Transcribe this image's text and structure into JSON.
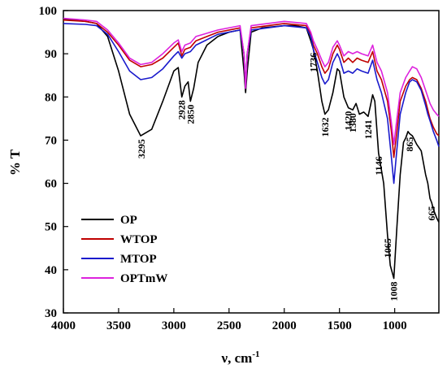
{
  "chart_data": {
    "type": "line",
    "title": "",
    "xlabel": "ν, cm",
    "xlabel_sup": "-1",
    "ylabel": "% T",
    "xlim": [
      4000,
      600
    ],
    "ylim": [
      30,
      100
    ],
    "x_reversed": true,
    "x_ticks": [
      4000,
      3500,
      3000,
      2500,
      2000,
      1500,
      1000
    ],
    "y_ticks": [
      30,
      40,
      50,
      60,
      70,
      80,
      90,
      100
    ],
    "grid": false,
    "legend_position": "lower-left",
    "series": [
      {
        "name": "OP",
        "color": "#000000",
        "points": [
          [
            4000,
            98
          ],
          [
            3900,
            97.8
          ],
          [
            3800,
            97.5
          ],
          [
            3700,
            97
          ],
          [
            3600,
            94
          ],
          [
            3500,
            86
          ],
          [
            3400,
            76
          ],
          [
            3300,
            71
          ],
          [
            3200,
            72.5
          ],
          [
            3100,
            79
          ],
          [
            3000,
            86
          ],
          [
            2960,
            86.8
          ],
          [
            2928,
            80
          ],
          [
            2900,
            82.5
          ],
          [
            2870,
            83.5
          ],
          [
            2850,
            79
          ],
          [
            2820,
            82
          ],
          [
            2780,
            88
          ],
          [
            2700,
            92
          ],
          [
            2600,
            94
          ],
          [
            2500,
            95
          ],
          [
            2400,
            95.5
          ],
          [
            2365,
            86
          ],
          [
            2350,
            81
          ],
          [
            2335,
            86
          ],
          [
            2300,
            95
          ],
          [
            2200,
            96
          ],
          [
            2000,
            96.5
          ],
          [
            1900,
            96.5
          ],
          [
            1800,
            96
          ],
          [
            1760,
            93
          ],
          [
            1736,
            91
          ],
          [
            1700,
            86
          ],
          [
            1660,
            79
          ],
          [
            1632,
            76
          ],
          [
            1600,
            77
          ],
          [
            1560,
            81
          ],
          [
            1520,
            86.5
          ],
          [
            1500,
            86
          ],
          [
            1460,
            80
          ],
          [
            1420,
            77.5
          ],
          [
            1380,
            77
          ],
          [
            1350,
            78.5
          ],
          [
            1320,
            76
          ],
          [
            1280,
            76.5
          ],
          [
            1241,
            75.5
          ],
          [
            1220,
            78
          ],
          [
            1200,
            80.5
          ],
          [
            1180,
            79
          ],
          [
            1146,
            67
          ],
          [
            1100,
            60
          ],
          [
            1065,
            48
          ],
          [
            1040,
            41
          ],
          [
            1008,
            38
          ],
          [
            980,
            50
          ],
          [
            950,
            62
          ],
          [
            920,
            69.5
          ],
          [
            900,
            70.5
          ],
          [
            880,
            72
          ],
          [
            865,
            71.5
          ],
          [
            840,
            71
          ],
          [
            800,
            69
          ],
          [
            760,
            67.5
          ],
          [
            720,
            62
          ],
          [
            700,
            60
          ],
          [
            680,
            56.5
          ],
          [
            665,
            55.5
          ],
          [
            650,
            54
          ],
          [
            620,
            52
          ],
          [
            600,
            51
          ]
        ]
      },
      {
        "name": "WTOP",
        "color": "#c00000",
        "points": [
          [
            4000,
            97.8
          ],
          [
            3800,
            97.5
          ],
          [
            3700,
            97
          ],
          [
            3600,
            95
          ],
          [
            3500,
            92
          ],
          [
            3400,
            88.5
          ],
          [
            3300,
            87
          ],
          [
            3200,
            87.5
          ],
          [
            3100,
            89
          ],
          [
            3000,
            91.5
          ],
          [
            2960,
            92.5
          ],
          [
            2928,
            89.5
          ],
          [
            2900,
            91
          ],
          [
            2850,
            91.5
          ],
          [
            2800,
            93
          ],
          [
            2600,
            95
          ],
          [
            2400,
            96
          ],
          [
            2365,
            90
          ],
          [
            2350,
            82
          ],
          [
            2335,
            90
          ],
          [
            2300,
            96
          ],
          [
            2000,
            97
          ],
          [
            1800,
            96.5
          ],
          [
            1760,
            94.5
          ],
          [
            1736,
            92
          ],
          [
            1700,
            90
          ],
          [
            1660,
            87
          ],
          [
            1632,
            85.5
          ],
          [
            1600,
            86.5
          ],
          [
            1560,
            90
          ],
          [
            1520,
            92
          ],
          [
            1500,
            91
          ],
          [
            1460,
            88
          ],
          [
            1420,
            89
          ],
          [
            1380,
            88
          ],
          [
            1340,
            89
          ],
          [
            1300,
            88.5
          ],
          [
            1241,
            88
          ],
          [
            1200,
            90.5
          ],
          [
            1160,
            86
          ],
          [
            1120,
            84
          ],
          [
            1065,
            79
          ],
          [
            1030,
            72
          ],
          [
            1008,
            66
          ],
          [
            980,
            72
          ],
          [
            950,
            79
          ],
          [
            900,
            82.5
          ],
          [
            865,
            84
          ],
          [
            840,
            84.5
          ],
          [
            800,
            84
          ],
          [
            760,
            82
          ],
          [
            720,
            79
          ],
          [
            700,
            77
          ],
          [
            680,
            75
          ],
          [
            650,
            73
          ],
          [
            620,
            71.5
          ],
          [
            600,
            71
          ]
        ]
      },
      {
        "name": "MTOP",
        "color": "#1a1acc",
        "points": [
          [
            4000,
            97
          ],
          [
            3800,
            96.8
          ],
          [
            3700,
            96.5
          ],
          [
            3600,
            94.5
          ],
          [
            3500,
            90.5
          ],
          [
            3400,
            86
          ],
          [
            3300,
            84
          ],
          [
            3200,
            84.5
          ],
          [
            3100,
            86.5
          ],
          [
            3000,
            89.5
          ],
          [
            2960,
            90.5
          ],
          [
            2928,
            89
          ],
          [
            2900,
            90
          ],
          [
            2850,
            90.5
          ],
          [
            2800,
            92
          ],
          [
            2600,
            94.5
          ],
          [
            2400,
            95.5
          ],
          [
            2365,
            90
          ],
          [
            2350,
            82
          ],
          [
            2335,
            90
          ],
          [
            2300,
            95.5
          ],
          [
            2000,
            96.5
          ],
          [
            1800,
            96
          ],
          [
            1760,
            94
          ],
          [
            1736,
            91
          ],
          [
            1700,
            88
          ],
          [
            1660,
            84.5
          ],
          [
            1632,
            83
          ],
          [
            1600,
            84
          ],
          [
            1560,
            88
          ],
          [
            1520,
            90
          ],
          [
            1500,
            89
          ],
          [
            1460,
            85.5
          ],
          [
            1420,
            86
          ],
          [
            1380,
            85.5
          ],
          [
            1340,
            86.5
          ],
          [
            1300,
            86
          ],
          [
            1241,
            85.5
          ],
          [
            1200,
            88.5
          ],
          [
            1160,
            84
          ],
          [
            1120,
            81
          ],
          [
            1065,
            75
          ],
          [
            1030,
            66
          ],
          [
            1008,
            60
          ],
          [
            980,
            68
          ],
          [
            950,
            76
          ],
          [
            900,
            81
          ],
          [
            865,
            83.5
          ],
          [
            840,
            84
          ],
          [
            800,
            83.5
          ],
          [
            760,
            81.5
          ],
          [
            720,
            78
          ],
          [
            700,
            76
          ],
          [
            680,
            74.5
          ],
          [
            650,
            72
          ],
          [
            620,
            70
          ],
          [
            600,
            68.5
          ]
        ]
      },
      {
        "name": "OPTmW",
        "color": "#dd22dd",
        "points": [
          [
            4000,
            98.2
          ],
          [
            3800,
            97.8
          ],
          [
            3700,
            97.5
          ],
          [
            3600,
            95.5
          ],
          [
            3500,
            92.5
          ],
          [
            3400,
            89
          ],
          [
            3300,
            87.5
          ],
          [
            3200,
            88
          ],
          [
            3100,
            90
          ],
          [
            3000,
            92.5
          ],
          [
            2960,
            93.2
          ],
          [
            2928,
            90.5
          ],
          [
            2900,
            92
          ],
          [
            2850,
            92.5
          ],
          [
            2800,
            94
          ],
          [
            2600,
            95.5
          ],
          [
            2400,
            96.5
          ],
          [
            2365,
            90
          ],
          [
            2350,
            82
          ],
          [
            2335,
            90
          ],
          [
            2300,
            96.5
          ],
          [
            2000,
            97.5
          ],
          [
            1800,
            97
          ],
          [
            1760,
            95
          ],
          [
            1736,
            93
          ],
          [
            1700,
            91
          ],
          [
            1660,
            88.5
          ],
          [
            1632,
            87
          ],
          [
            1600,
            88
          ],
          [
            1560,
            91.5
          ],
          [
            1520,
            93
          ],
          [
            1500,
            92
          ],
          [
            1460,
            89.5
          ],
          [
            1420,
            90.5
          ],
          [
            1380,
            90
          ],
          [
            1340,
            90.5
          ],
          [
            1300,
            90
          ],
          [
            1241,
            89.5
          ],
          [
            1200,
            92
          ],
          [
            1160,
            88
          ],
          [
            1120,
            86
          ],
          [
            1065,
            81
          ],
          [
            1030,
            74
          ],
          [
            1008,
            69
          ],
          [
            980,
            75
          ],
          [
            950,
            81
          ],
          [
            900,
            84.5
          ],
          [
            865,
            86
          ],
          [
            840,
            87
          ],
          [
            800,
            86.5
          ],
          [
            760,
            84.5
          ],
          [
            720,
            81.5
          ],
          [
            700,
            80
          ],
          [
            680,
            78.5
          ],
          [
            650,
            77
          ],
          [
            620,
            76
          ],
          [
            600,
            75.5
          ]
        ]
      }
    ],
    "annotations": [
      {
        "text": "3295",
        "x": 3295,
        "y": 71
      },
      {
        "text": "2928",
        "x": 2928,
        "y": 80
      },
      {
        "text": "2850",
        "x": 2850,
        "y": 79
      },
      {
        "text": "1736",
        "x": 1736,
        "y": 91
      },
      {
        "text": "1632",
        "x": 1632,
        "y": 76
      },
      {
        "text": "1420",
        "x": 1420,
        "y": 77.5
      },
      {
        "text": "1380",
        "x": 1380,
        "y": 77
      },
      {
        "text": "1241",
        "x": 1241,
        "y": 75.5
      },
      {
        "text": "1146",
        "x": 1146,
        "y": 67
      },
      {
        "text": "1065",
        "x": 1065,
        "y": 48
      },
      {
        "text": "1008",
        "x": 1008,
        "y": 38
      },
      {
        "text": "865",
        "x": 865,
        "y": 71.5
      },
      {
        "text": "665",
        "x": 665,
        "y": 55.5
      }
    ]
  }
}
